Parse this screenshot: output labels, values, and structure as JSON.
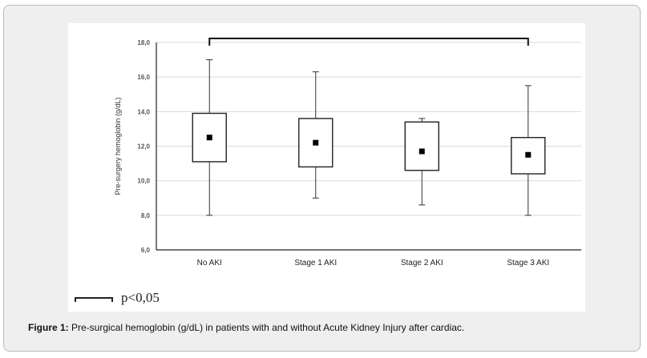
{
  "chart_data": {
    "type": "box",
    "categories": [
      "No AKI",
      "Stage 1 AKI",
      "Stage 2 AKI",
      "Stage 3 AKI"
    ],
    "ylabel": "Pre-surgery hemoglobin (g/dL)",
    "ylim": [
      6.0,
      18.0
    ],
    "yticks": [
      "6,0",
      "8,0",
      "10,0",
      "12,0",
      "14,0",
      "16,0",
      "18,0"
    ],
    "grid": true,
    "boxes": [
      {
        "category": "No AKI",
        "min": 8.0,
        "q1": 11.1,
        "q3": 13.9,
        "max": 17.0,
        "mean": 12.5
      },
      {
        "category": "Stage 1 AKI",
        "min": 9.0,
        "q1": 10.8,
        "q3": 13.6,
        "max": 16.3,
        "mean": 12.2
      },
      {
        "category": "Stage 2 AKI",
        "min": 8.6,
        "q1": 10.6,
        "q3": 13.4,
        "max": 13.6,
        "mean": 11.7
      },
      {
        "category": "Stage 3 AKI",
        "min": 8.0,
        "q1": 10.4,
        "q3": 12.5,
        "max": 15.5,
        "mean": 11.5
      }
    ],
    "significance_bracket": {
      "from": "No AKI",
      "to": "Stage 3 AKI",
      "y": 18.0
    }
  },
  "legend": {
    "label": "p<0,05"
  },
  "caption": {
    "prefix": "Figure 1:",
    "text": " Pre-surgical hemoglobin (g/dL) in patients with and without Acute Kidney Injury after cardiac."
  }
}
